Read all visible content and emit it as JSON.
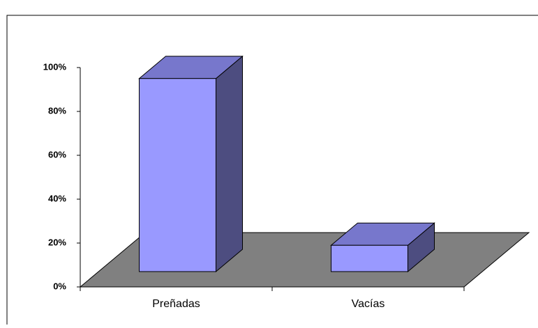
{
  "chart_data": {
    "type": "bar3d",
    "categories": [
      "Preñadas",
      "Vacías"
    ],
    "values": [
      88,
      12
    ],
    "color": "#9999ff",
    "ylim": [
      0,
      100
    ],
    "yticks": [
      {
        "value": 0,
        "label": "0%"
      },
      {
        "value": 20,
        "label": "20%"
      },
      {
        "value": 40,
        "label": "40%"
      },
      {
        "value": 60,
        "label": "60%"
      },
      {
        "value": 80,
        "label": "80%"
      },
      {
        "value": 100,
        "label": "100%"
      }
    ]
  }
}
